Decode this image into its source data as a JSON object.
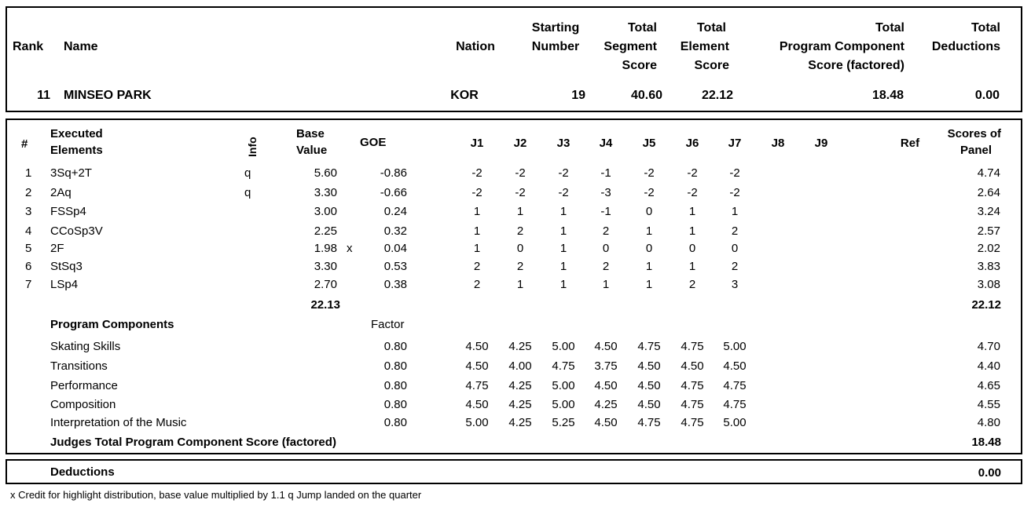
{
  "header": {
    "rank_label": "Rank",
    "name_label": "Name",
    "nation_label": "Nation",
    "starting_number_label": [
      "Starting",
      "Number"
    ],
    "tss_label": [
      "Total",
      "Segment",
      "Score"
    ],
    "tes_label": [
      "Total",
      "Element",
      "Score"
    ],
    "pcs_label": [
      "Total",
      "Program  Component",
      "Score (factored)"
    ],
    "ded_label": [
      "Total",
      "Deductions"
    ]
  },
  "skater": {
    "rank": "11",
    "name": "MINSEO PARK",
    "nation": "KOR",
    "starting_number": "19",
    "tss": "40.60",
    "tes": "22.12",
    "pcs": "18.48",
    "deductions": "0.00"
  },
  "elements_header": {
    "num": "#",
    "executed": [
      "Executed",
      "Elements"
    ],
    "info": "Info",
    "base_value": [
      "Base",
      "Value"
    ],
    "goe": "GOE",
    "judges": [
      "J1",
      "J2",
      "J3",
      "J4",
      "J5",
      "J6",
      "J7",
      "J8",
      "J9"
    ],
    "ref": "Ref",
    "scores": [
      "Scores of",
      "Panel"
    ]
  },
  "elements": [
    {
      "num": "1",
      "name": "3Sq+2T",
      "info": "q",
      "bv": "5.60",
      "x": "",
      "goe": "-0.86",
      "j": [
        "-2",
        "-2",
        "-2",
        "-1",
        "-2",
        "-2",
        "-2"
      ],
      "score": "4.74"
    },
    {
      "num": "2",
      "name": "2Aq",
      "info": "q",
      "bv": "3.30",
      "x": "",
      "goe": "-0.66",
      "j": [
        "-2",
        "-2",
        "-2",
        "-3",
        "-2",
        "-2",
        "-2"
      ],
      "score": "2.64"
    },
    {
      "num": "3",
      "name": "FSSp4",
      "info": "",
      "bv": "3.00",
      "x": "",
      "goe": "0.24",
      "j": [
        "1",
        "1",
        "1",
        "-1",
        "0",
        "1",
        "1"
      ],
      "score": "3.24"
    },
    {
      "num": "4",
      "name": "CCoSp3V",
      "info": "",
      "bv": "2.25",
      "x": "",
      "goe": "0.32",
      "j": [
        "1",
        "2",
        "1",
        "2",
        "1",
        "1",
        "2"
      ],
      "score": "2.57"
    },
    {
      "num": "5",
      "name": "2F",
      "info": "",
      "bv": "1.98",
      "x": "x",
      "goe": "0.04",
      "j": [
        "1",
        "0",
        "1",
        "0",
        "0",
        "0",
        "0"
      ],
      "score": "2.02"
    },
    {
      "num": "6",
      "name": "StSq3",
      "info": "",
      "bv": "3.30",
      "x": "",
      "goe": "0.53",
      "j": [
        "2",
        "2",
        "1",
        "2",
        "1",
        "1",
        "2"
      ],
      "score": "3.83"
    },
    {
      "num": "7",
      "name": "LSp4",
      "info": "",
      "bv": "2.70",
      "x": "",
      "goe": "0.38",
      "j": [
        "2",
        "1",
        "1",
        "1",
        "1",
        "2",
        "3"
      ],
      "score": "3.08"
    }
  ],
  "elements_total": {
    "bv": "22.13",
    "score": "22.12"
  },
  "components_header": {
    "label": "Program Components",
    "factor": "Factor"
  },
  "components": [
    {
      "name": "Skating Skills",
      "factor": "0.80",
      "j": [
        "4.50",
        "4.25",
        "5.00",
        "4.50",
        "4.75",
        "4.75",
        "5.00"
      ],
      "score": "4.70"
    },
    {
      "name": "Transitions",
      "factor": "0.80",
      "j": [
        "4.50",
        "4.00",
        "4.75",
        "3.75",
        "4.50",
        "4.50",
        "4.50"
      ],
      "score": "4.40"
    },
    {
      "name": "Performance",
      "factor": "0.80",
      "j": [
        "4.75",
        "4.25",
        "5.00",
        "4.50",
        "4.50",
        "4.75",
        "4.75"
      ],
      "score": "4.65"
    },
    {
      "name": "Composition",
      "factor": "0.80",
      "j": [
        "4.50",
        "4.25",
        "5.00",
        "4.25",
        "4.50",
        "4.75",
        "4.75"
      ],
      "score": "4.55"
    },
    {
      "name": "Interpretation of the Music",
      "factor": "0.80",
      "j": [
        "5.00",
        "4.25",
        "5.25",
        "4.50",
        "4.75",
        "4.75",
        "5.00"
      ],
      "score": "4.80"
    }
  ],
  "components_total": {
    "label": "Judges Total Program Component Score (factored)",
    "score": "18.48"
  },
  "deductions": {
    "label": "Deductions",
    "value": "0.00"
  },
  "footnote": "x  Credit for highlight distribution, base value multiplied by 1.1   q  Jump landed on the quarter"
}
